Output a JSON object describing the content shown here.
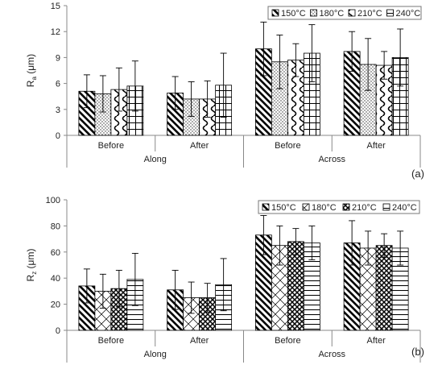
{
  "chart_data": [
    {
      "type": "bar",
      "panel_label": "(a)",
      "ylabel_base": "R",
      "ylabel_sub": "a",
      "ylabel_unit": "(μm)",
      "ylim": [
        0,
        15
      ],
      "yticks": [
        0,
        3,
        6,
        9,
        12,
        15
      ],
      "grid": false,
      "legend_position": "top-right",
      "groups": [
        "Along",
        "Across"
      ],
      "categories": [
        "Before",
        "After",
        "Before",
        "After"
      ],
      "series": [
        {
          "name": "150°C",
          "values": [
            5.1,
            4.9,
            10.0,
            9.7
          ],
          "errors": [
            1.9,
            1.9,
            3.1,
            2.3
          ]
        },
        {
          "name": "180°C",
          "values": [
            4.8,
            4.2,
            8.5,
            8.2
          ],
          "errors": [
            2.1,
            2.0,
            3.1,
            3.0
          ]
        },
        {
          "name": "210°C",
          "values": [
            5.3,
            4.2,
            8.7,
            8.1
          ],
          "errors": [
            2.5,
            2.1,
            1.9,
            1.6
          ]
        },
        {
          "name": "240°C",
          "values": [
            5.7,
            5.8,
            9.5,
            9.0
          ],
          "errors": [
            2.9,
            3.7,
            3.3,
            3.3
          ]
        }
      ]
    },
    {
      "type": "bar",
      "panel_label": "(b)",
      "ylabel_base": "R",
      "ylabel_sub": "z",
      "ylabel_unit": "(μm)",
      "ylim": [
        0,
        100
      ],
      "yticks": [
        0,
        20,
        40,
        60,
        80,
        100
      ],
      "grid": false,
      "legend_position": "top-right",
      "groups": [
        "Along",
        "Across"
      ],
      "categories": [
        "Before",
        "After",
        "Before",
        "After"
      ],
      "series": [
        {
          "name": "150°C",
          "values": [
            34,
            31,
            73,
            67
          ],
          "errors": [
            13,
            15,
            15,
            17
          ]
        },
        {
          "name": "180°C",
          "values": [
            30,
            25,
            65,
            63
          ],
          "errors": [
            13,
            12,
            15,
            13
          ]
        },
        {
          "name": "210°C",
          "values": [
            32,
            25,
            68,
            65
          ],
          "errors": [
            14,
            11,
            10,
            9
          ]
        },
        {
          "name": "240°C",
          "values": [
            39,
            35,
            67,
            63
          ],
          "errors": [
            20,
            20,
            13,
            13
          ]
        }
      ]
    }
  ]
}
